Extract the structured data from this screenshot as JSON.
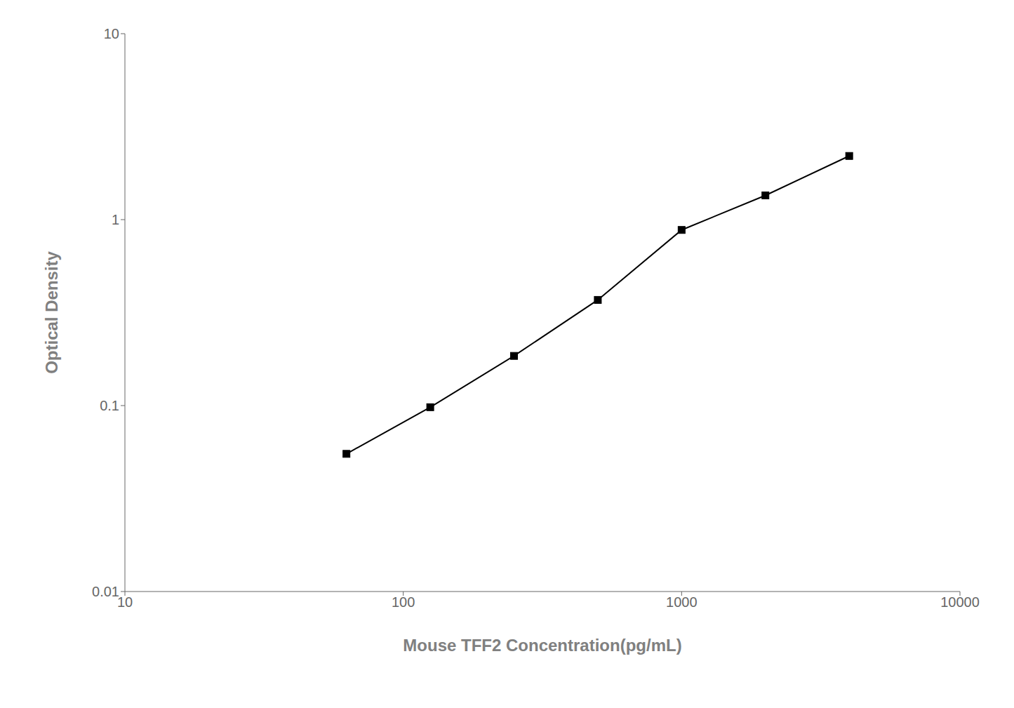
{
  "chart_data": {
    "type": "line",
    "xlabel": "Mouse TFF2 Concentration(pg/mL)",
    "ylabel": "Optical Density",
    "x": [
      62.5,
      125,
      250,
      500,
      1000,
      2000,
      4000
    ],
    "values": [
      0.055,
      0.098,
      0.185,
      0.37,
      0.88,
      1.35,
      2.2
    ],
    "xlim": [
      10,
      10000
    ],
    "ylim": [
      0.01,
      10
    ],
    "xticks": [
      10,
      100,
      1000,
      10000
    ],
    "yticks": [
      0.01,
      0.1,
      1,
      10
    ],
    "log": true,
    "grid": false,
    "color": "#000000",
    "marker": "square"
  }
}
